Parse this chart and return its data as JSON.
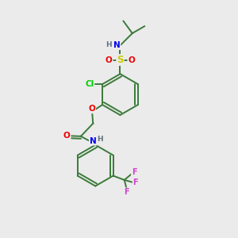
{
  "bg_color": "#ebebeb",
  "bond_color": "#3a7a3a",
  "bond_lw": 1.4,
  "atom_colors": {
    "N": "#0000ee",
    "O": "#ee0000",
    "S": "#cccc00",
    "Cl": "#00cc00",
    "F": "#cc44cc",
    "H": "#607080",
    "C": "#3a7a3a"
  },
  "font_size": 7.5
}
